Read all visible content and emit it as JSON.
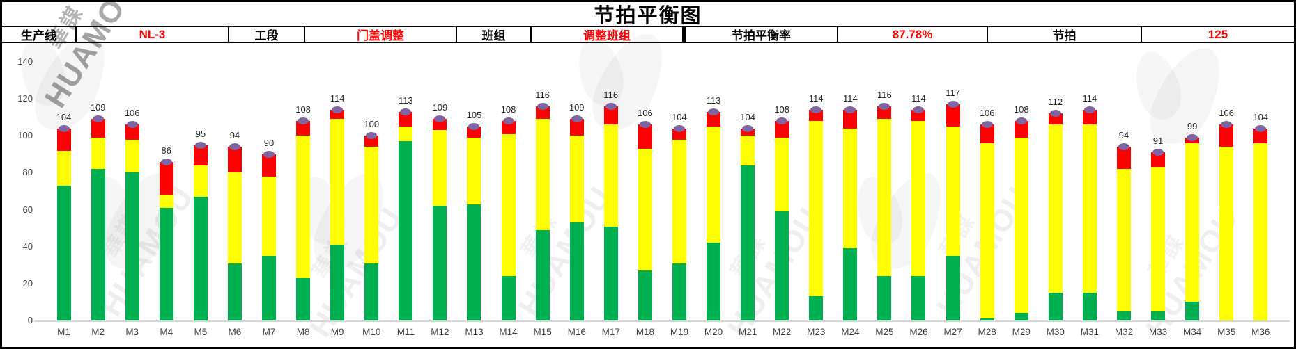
{
  "title": "节拍平衡图",
  "watermark": {
    "en": "HUAMOU",
    "cn": "華謀"
  },
  "info_bar": {
    "cells": [
      {
        "text": "生产线",
        "kind": "label"
      },
      {
        "text": "NL-3",
        "kind": "value"
      },
      {
        "text": "工段",
        "kind": "label"
      },
      {
        "text": "门盖调整",
        "kind": "value"
      },
      {
        "text": "班组",
        "kind": "label"
      },
      {
        "text": "调整班组",
        "kind": "value"
      },
      {
        "text": "节拍平衡率",
        "kind": "label",
        "thick": true
      },
      {
        "text": "87.78%",
        "kind": "value"
      },
      {
        "text": "节拍",
        "kind": "label"
      },
      {
        "text": "125",
        "kind": "value"
      }
    ]
  },
  "chart_data": {
    "type": "bar",
    "subtype": "stacked-column with top markers",
    "title": "节拍平衡图",
    "xlabel": "",
    "ylabel": "",
    "ylim": [
      0,
      140
    ],
    "yticks": [
      0,
      20,
      40,
      60,
      80,
      100,
      120,
      140
    ],
    "grid": false,
    "legend_position": "none",
    "categories": [
      "M1",
      "M2",
      "M3",
      "M4",
      "M5",
      "M6",
      "M7",
      "M8",
      "M9",
      "M10",
      "M11",
      "M12",
      "M13",
      "M14",
      "M15",
      "M16",
      "M17",
      "M18",
      "M19",
      "M20",
      "M21",
      "M22",
      "M23",
      "M24",
      "M25",
      "M26",
      "M27",
      "M28",
      "M29",
      "M30",
      "M31",
      "M32",
      "M33",
      "M34",
      "M35",
      "M36"
    ],
    "series": [
      {
        "name": "green-segment",
        "color": "#00B050",
        "values": [
          73,
          82,
          80,
          61,
          67,
          31,
          35,
          23,
          41,
          31,
          97,
          62,
          63,
          24,
          49,
          53,
          51,
          27,
          31,
          42,
          84,
          59,
          13,
          39,
          24,
          24,
          35,
          1,
          4,
          15,
          15,
          5,
          5,
          10,
          0,
          0
        ]
      },
      {
        "name": "yellow-segment",
        "color": "#FFFF00",
        "values": [
          19,
          17,
          18,
          7,
          17,
          49,
          43,
          77,
          68,
          63,
          8,
          41,
          36,
          77,
          60,
          47,
          55,
          66,
          67,
          63,
          16,
          40,
          95,
          65,
          85,
          84,
          70,
          95,
          95,
          91,
          91,
          77,
          78,
          86,
          94,
          96
        ]
      },
      {
        "name": "red-segment",
        "color": "#FF0000",
        "values": [
          12,
          10,
          8,
          18,
          11,
          14,
          12,
          8,
          5,
          6,
          8,
          6,
          6,
          7,
          7,
          9,
          10,
          13,
          6,
          8,
          4,
          9,
          6,
          10,
          7,
          6,
          12,
          10,
          9,
          6,
          8,
          12,
          8,
          3,
          12,
          8
        ]
      }
    ],
    "totals": [
      104,
      109,
      106,
      86,
      95,
      94,
      90,
      108,
      114,
      100,
      113,
      109,
      105,
      108,
      116,
      109,
      116,
      106,
      104,
      113,
      104,
      108,
      114,
      114,
      116,
      114,
      117,
      106,
      108,
      112,
      114,
      94,
      91,
      99,
      106,
      104
    ],
    "marker": {
      "shape": "ellipse",
      "color": "#8064A2"
    }
  }
}
